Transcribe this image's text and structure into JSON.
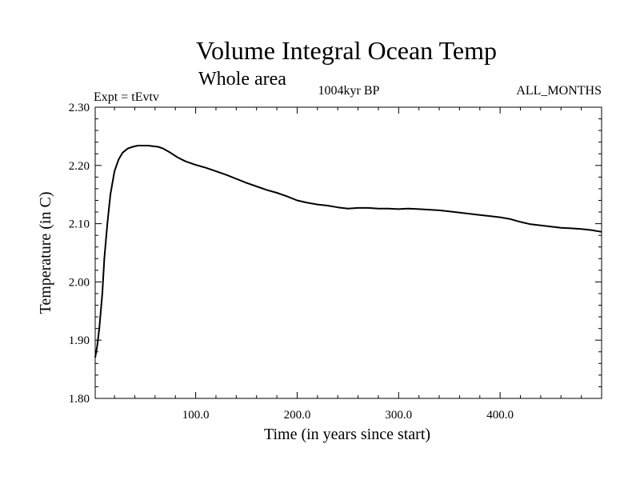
{
  "chart_data": {
    "type": "line",
    "title": "Volume Integral Ocean Temp",
    "subtitle": "Whole area",
    "annotations": {
      "left": "Expt = tEvtv",
      "center": "1004kyr BP",
      "right": "ALL_MONTHS"
    },
    "xlabel": "Time (in years since start)",
    "ylabel": "Temperature (in C)",
    "xlim": [
      1,
      500
    ],
    "ylim": [
      1.8,
      2.3
    ],
    "x_ticks": [
      100,
      200,
      300,
      400
    ],
    "x_tick_labels": [
      "100.0",
      "200.0",
      "300.0",
      "400.0"
    ],
    "y_ticks": [
      1.8,
      1.9,
      2.0,
      2.1,
      2.2,
      2.3
    ],
    "y_tick_labels": [
      "1.80",
      "1.90",
      "2.00",
      "2.10",
      "2.20",
      "2.30"
    ],
    "series": [
      {
        "name": "Volume Integral Ocean Temp",
        "x": [
          1,
          3,
          5,
          8,
          10,
          13,
          16,
          20,
          24,
          28,
          33,
          38,
          43,
          48,
          53,
          58,
          63,
          68,
          75,
          82,
          90,
          100,
          110,
          120,
          130,
          140,
          150,
          160,
          170,
          180,
          190,
          200,
          210,
          220,
          230,
          240,
          250,
          260,
          270,
          280,
          290,
          300,
          310,
          320,
          330,
          340,
          350,
          360,
          370,
          380,
          390,
          400,
          410,
          420,
          430,
          440,
          450,
          460,
          470,
          480,
          490,
          500
        ],
        "values": [
          1.87,
          1.89,
          1.92,
          1.98,
          2.04,
          2.1,
          2.15,
          2.19,
          2.21,
          2.222,
          2.229,
          2.232,
          2.234,
          2.234,
          2.234,
          2.233,
          2.232,
          2.229,
          2.222,
          2.214,
          2.207,
          2.201,
          2.196,
          2.19,
          2.184,
          2.177,
          2.17,
          2.164,
          2.158,
          2.153,
          2.147,
          2.14,
          2.136,
          2.133,
          2.131,
          2.128,
          2.126,
          2.127,
          2.127,
          2.126,
          2.126,
          2.125,
          2.126,
          2.125,
          2.124,
          2.123,
          2.121,
          2.119,
          2.117,
          2.115,
          2.113,
          2.111,
          2.108,
          2.103,
          2.099,
          2.097,
          2.095,
          2.093,
          2.092,
          2.091,
          2.089,
          2.086
        ]
      }
    ]
  }
}
